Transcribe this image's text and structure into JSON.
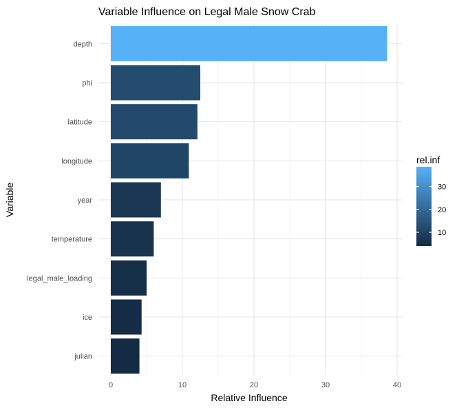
{
  "chart_data": {
    "type": "bar",
    "orientation": "horizontal",
    "title": "Variable Influence on Legal Male Snow Crab",
    "xlabel": "Relative Influence",
    "ylabel": "Variable",
    "categories": [
      "depth",
      "phi",
      "latitude",
      "longitude",
      "year",
      "temperature",
      "legal_male_loading",
      "ice",
      "julian"
    ],
    "values": [
      38.6,
      12.5,
      12.1,
      10.9,
      7.0,
      6.0,
      5.0,
      4.3,
      4.0
    ],
    "xlim": [
      0,
      40
    ],
    "x_ticks": [
      0,
      10,
      20,
      30,
      40
    ],
    "grid": true,
    "legend": {
      "title": "rel.inf",
      "position": "right",
      "ticks": [
        10,
        20,
        30
      ],
      "range": [
        4.0,
        38.6
      ],
      "color_low": "#132B43",
      "color_high": "#56B1F7"
    }
  }
}
